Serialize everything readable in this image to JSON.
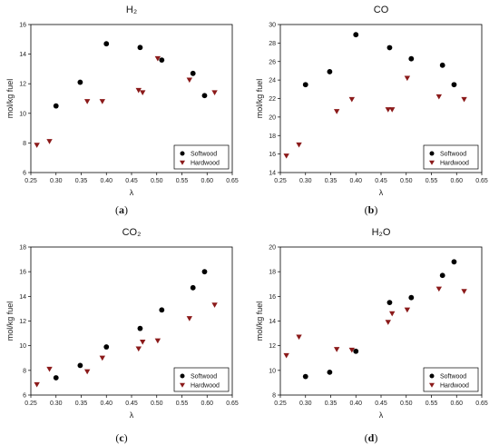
{
  "chart_data": [
    {
      "type": "scatter",
      "title": "H₂",
      "caption": "a",
      "xlabel": "λ",
      "ylabel": "mol/kg fuel",
      "xlim": [
        0.25,
        0.65
      ],
      "ylim": [
        6,
        16
      ],
      "xticks": [
        "0.25",
        "0.30",
        "0.35",
        "0.40",
        "0.45",
        "0.50",
        "0.55",
        "0.60",
        "0.65"
      ],
      "yticks": [
        "6",
        "8",
        "10",
        "12",
        "14",
        "16"
      ],
      "legend_position": "bottom-right",
      "series": [
        {
          "name": "Softwood",
          "marker": "circle",
          "color": "#000000",
          "x": [
            0.3,
            0.348,
            0.4,
            0.467,
            0.51,
            0.572,
            0.595
          ],
          "y": [
            10.5,
            12.1,
            14.7,
            14.45,
            13.6,
            12.7,
            11.2
          ]
        },
        {
          "name": "Hardwood",
          "marker": "triangle-down",
          "color": "#8b1a1a",
          "x": [
            0.262,
            0.287,
            0.362,
            0.392,
            0.464,
            0.472,
            0.502,
            0.565,
            0.615
          ],
          "y": [
            7.85,
            8.1,
            10.8,
            10.8,
            11.55,
            11.4,
            13.7,
            12.25,
            11.4
          ]
        }
      ]
    },
    {
      "type": "scatter",
      "title": "CO",
      "caption": "b",
      "xlabel": "λ",
      "ylabel": "mol/kg fuel",
      "xlim": [
        0.25,
        0.65
      ],
      "ylim": [
        14,
        30
      ],
      "xticks": [
        "0.25",
        "0.30",
        "0.35",
        "0.40",
        "0.45",
        "0.50",
        "0.55",
        "0.60",
        "0.65"
      ],
      "yticks": [
        "14",
        "16",
        "18",
        "20",
        "22",
        "24",
        "26",
        "28",
        "30"
      ],
      "legend_position": "bottom-right",
      "series": [
        {
          "name": "Softwood",
          "marker": "circle",
          "color": "#000000",
          "x": [
            0.3,
            0.348,
            0.4,
            0.467,
            0.51,
            0.572,
            0.595
          ],
          "y": [
            23.5,
            24.9,
            28.9,
            27.5,
            26.3,
            25.6,
            23.5
          ]
        },
        {
          "name": "Hardwood",
          "marker": "triangle-down",
          "color": "#8b1a1a",
          "x": [
            0.262,
            0.287,
            0.362,
            0.392,
            0.464,
            0.472,
            0.502,
            0.565,
            0.615
          ],
          "y": [
            15.8,
            17.0,
            20.6,
            21.9,
            20.8,
            20.8,
            24.2,
            22.2,
            21.9
          ]
        }
      ]
    },
    {
      "type": "scatter",
      "title": "CO₂",
      "caption": "c",
      "xlabel": "λ",
      "ylabel": "mol/kg fuel",
      "xlim": [
        0.25,
        0.65
      ],
      "ylim": [
        6,
        18
      ],
      "xticks": [
        "0.25",
        "0.30",
        "0.35",
        "0.40",
        "0.45",
        "0.50",
        "0.55",
        "0.60",
        "0.65"
      ],
      "yticks": [
        "6",
        "8",
        "10",
        "12",
        "14",
        "16",
        "18"
      ],
      "legend_position": "bottom-right",
      "series": [
        {
          "name": "Softwood",
          "marker": "circle",
          "color": "#000000",
          "x": [
            0.3,
            0.348,
            0.4,
            0.467,
            0.51,
            0.572,
            0.595
          ],
          "y": [
            7.4,
            8.4,
            9.9,
            11.4,
            12.9,
            14.7,
            16.0
          ]
        },
        {
          "name": "Hardwood",
          "marker": "triangle-down",
          "color": "#8b1a1a",
          "x": [
            0.262,
            0.287,
            0.362,
            0.392,
            0.464,
            0.472,
            0.502,
            0.565,
            0.615
          ],
          "y": [
            6.85,
            8.1,
            7.9,
            9.0,
            9.75,
            10.3,
            10.4,
            12.2,
            13.3
          ]
        }
      ]
    },
    {
      "type": "scatter",
      "title": "H₂O",
      "caption": "d",
      "xlabel": "λ",
      "ylabel": "mol/kg fuel",
      "xlim": [
        0.25,
        0.65
      ],
      "ylim": [
        8,
        20
      ],
      "xticks": [
        "0.25",
        "0.30",
        "0.35",
        "0.40",
        "0.45",
        "0.50",
        "0.55",
        "0.60",
        "0.65"
      ],
      "yticks": [
        "8",
        "10",
        "12",
        "14",
        "16",
        "18",
        "20"
      ],
      "legend_position": "bottom-right",
      "series": [
        {
          "name": "Softwood",
          "marker": "circle",
          "color": "#000000",
          "x": [
            0.3,
            0.348,
            0.4,
            0.467,
            0.51,
            0.572,
            0.595
          ],
          "y": [
            9.5,
            9.85,
            11.55,
            15.5,
            15.9,
            17.7,
            18.8
          ]
        },
        {
          "name": "Hardwood",
          "marker": "triangle-down",
          "color": "#8b1a1a",
          "x": [
            0.262,
            0.287,
            0.362,
            0.392,
            0.464,
            0.472,
            0.502,
            0.565,
            0.615
          ],
          "y": [
            11.2,
            12.7,
            11.7,
            11.65,
            13.9,
            14.6,
            14.9,
            16.6,
            16.4
          ]
        }
      ]
    }
  ]
}
